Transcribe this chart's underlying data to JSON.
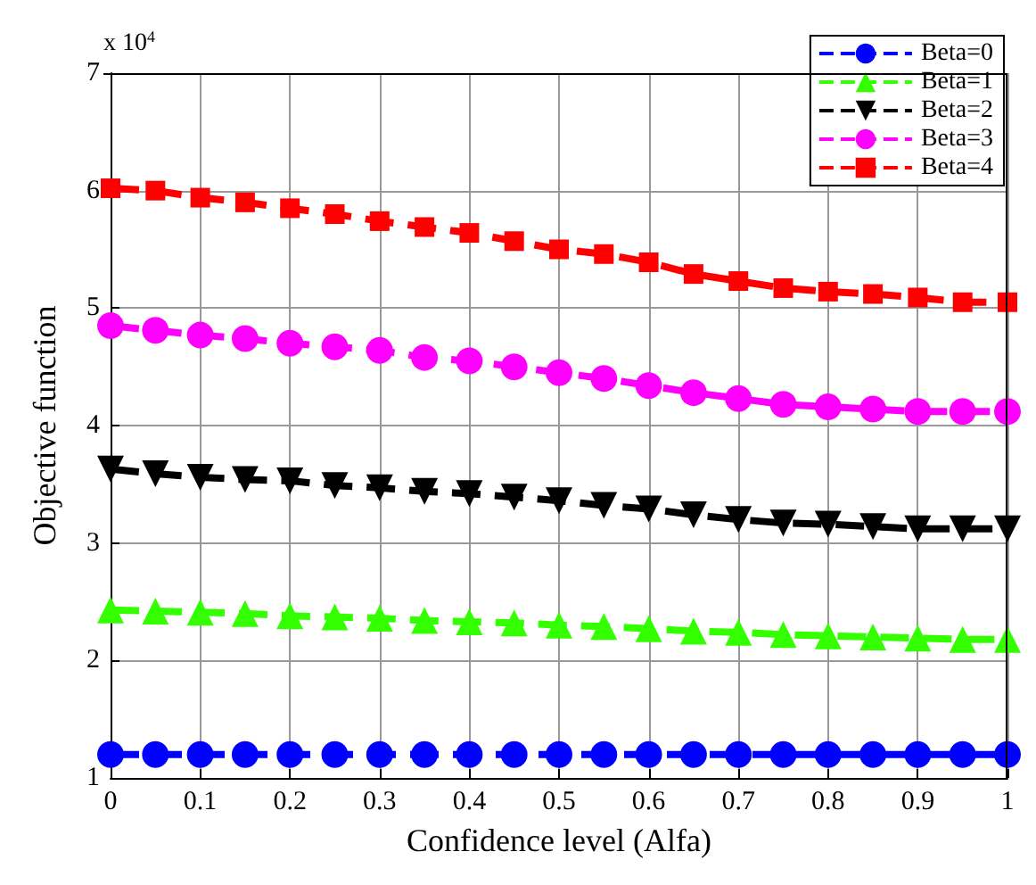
{
  "chart_data": {
    "type": "line",
    "xlabel": "Confidence level (Alfa)",
    "ylabel": "Objective function",
    "annotations": [
      "x 10$^{4}$"
    ],
    "x": [
      0,
      0.05,
      0.1,
      0.15,
      0.2,
      0.25,
      0.3,
      0.35,
      0.4,
      0.45,
      0.5,
      0.55,
      0.6,
      0.65,
      0.7,
      0.75,
      0.8,
      0.85,
      0.9,
      0.95,
      1
    ],
    "series": [
      {
        "name": "Beta=0",
        "color": "#0000ff",
        "marker": "circle",
        "values": [
          1.2,
          1.2,
          1.2,
          1.2,
          1.2,
          1.2,
          1.2,
          1.2,
          1.2,
          1.2,
          1.2,
          1.2,
          1.2,
          1.2,
          1.2,
          1.2,
          1.2,
          1.2,
          1.2,
          1.2,
          1.2
        ]
      },
      {
        "name": "Beta=1",
        "color": "#33ff00",
        "marker": "triangle",
        "values": [
          2.43,
          2.42,
          2.41,
          2.4,
          2.38,
          2.37,
          2.36,
          2.34,
          2.33,
          2.32,
          2.3,
          2.29,
          2.27,
          2.25,
          2.24,
          2.22,
          2.21,
          2.2,
          2.19,
          2.18,
          2.18
        ]
      },
      {
        "name": "Beta=2",
        "color": "#000000",
        "marker": "triangle-down",
        "values": [
          3.63,
          3.59,
          3.56,
          3.54,
          3.53,
          3.49,
          3.47,
          3.44,
          3.42,
          3.39,
          3.36,
          3.32,
          3.29,
          3.24,
          3.2,
          3.17,
          3.16,
          3.14,
          3.12,
          3.12,
          3.12
        ]
      },
      {
        "name": "Beta=3",
        "color": "#ff00ff",
        "marker": "circle",
        "values": [
          4.85,
          4.81,
          4.77,
          4.74,
          4.7,
          4.67,
          4.64,
          4.58,
          4.55,
          4.5,
          4.45,
          4.4,
          4.34,
          4.28,
          4.23,
          4.18,
          4.16,
          4.14,
          4.12,
          4.12,
          4.12
        ]
      },
      {
        "name": "Beta=4",
        "color": "#ff0000",
        "marker": "square",
        "values": [
          6.02,
          6.0,
          5.94,
          5.9,
          5.85,
          5.8,
          5.74,
          5.69,
          5.64,
          5.57,
          5.5,
          5.46,
          5.39,
          5.29,
          5.23,
          5.17,
          5.14,
          5.12,
          5.09,
          5.05,
          5.05
        ]
      }
    ],
    "xlim": [
      0,
      1
    ],
    "xticks": [
      0,
      0.1,
      0.2,
      0.3,
      0.4,
      0.5,
      0.6,
      0.7,
      0.8,
      0.9,
      1
    ],
    "ylim": [
      1,
      7
    ],
    "yticks": [
      1,
      2,
      3,
      4,
      5,
      6,
      7
    ],
    "grid": true,
    "legend": "top right",
    "line_style": "dashed"
  }
}
